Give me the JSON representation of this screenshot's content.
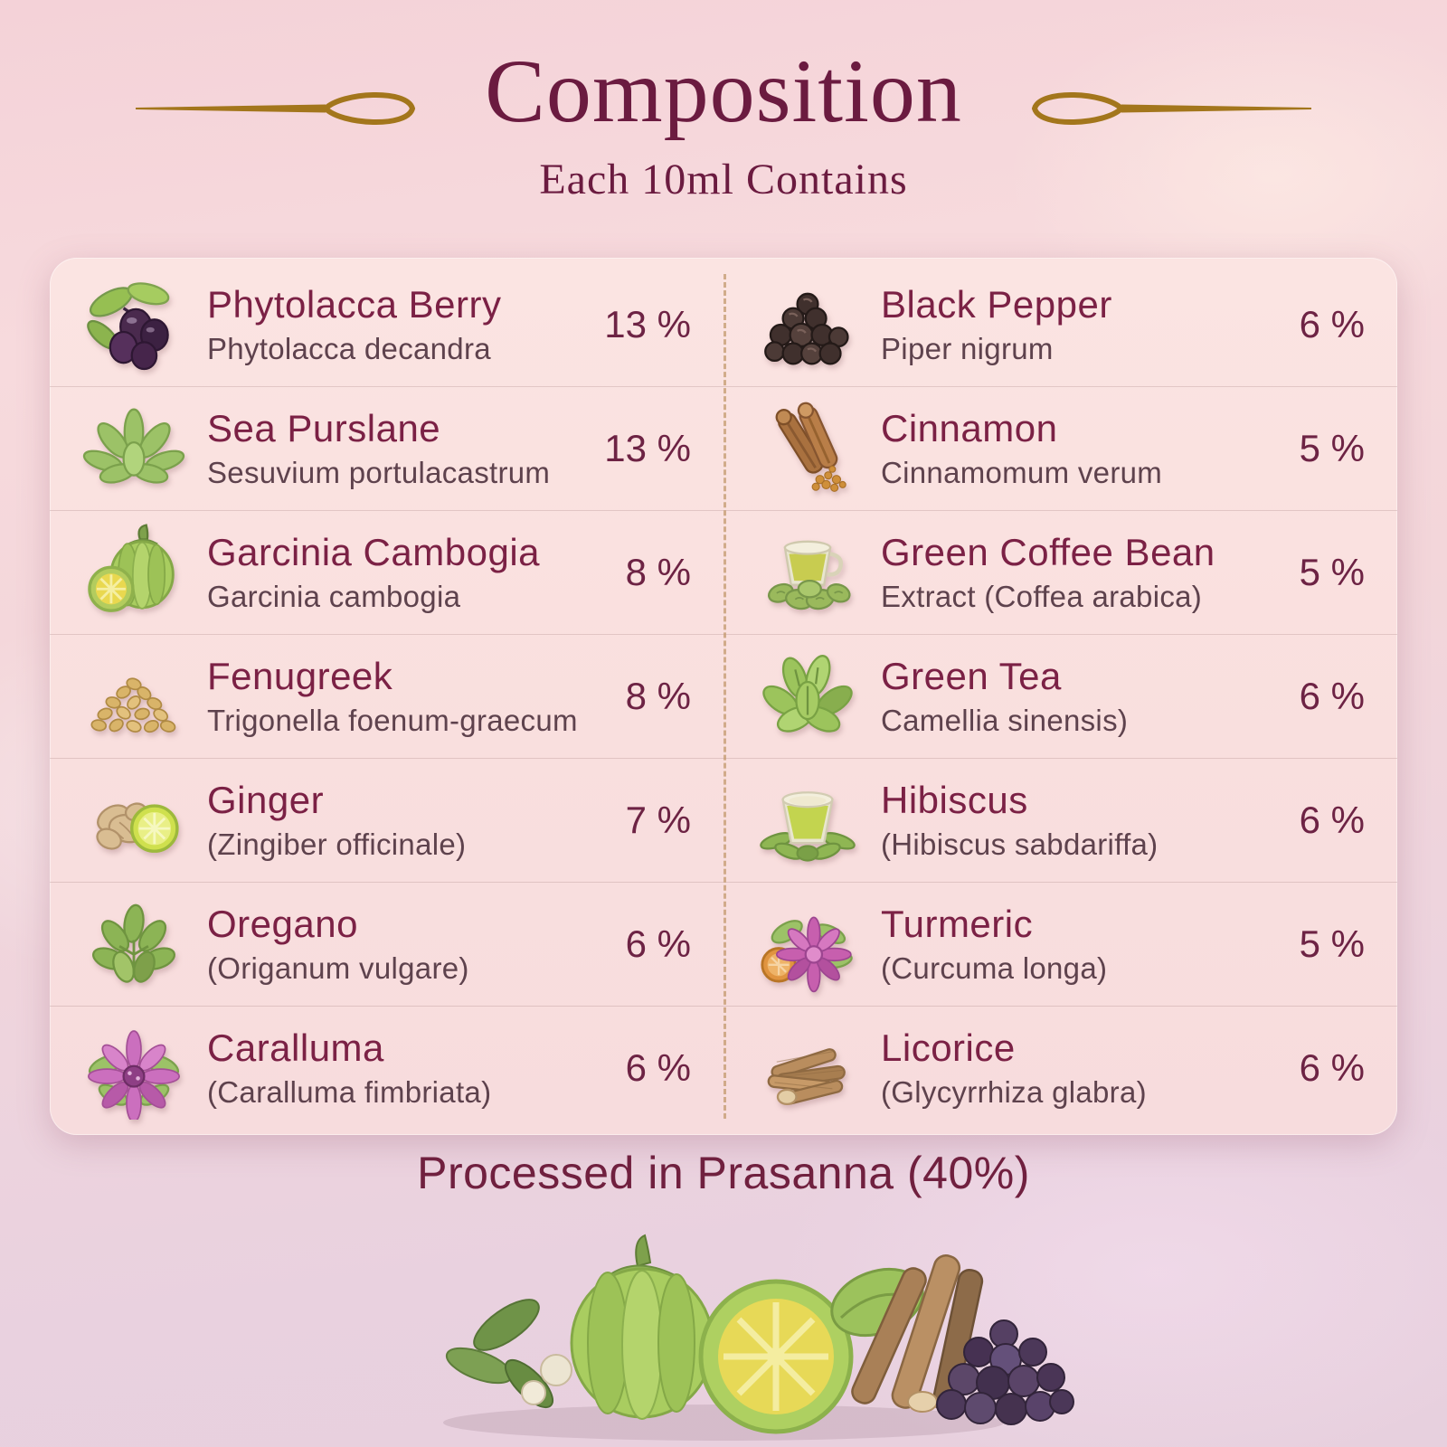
{
  "page": {
    "title": "Composition",
    "subtitle": "Each 10ml Contains",
    "footer": "Processed in Prasanna (40%)"
  },
  "colors": {
    "title_maroon": "#6b1b40",
    "name_maroon": "#7b2145",
    "botanical_gray": "#5e424d",
    "percent_maroon": "#6d2344",
    "ornament_gold": "#a3761c",
    "panel_pink": "#f9e0df",
    "background_pink": "#f1d4da",
    "divider_tan": "#c49a6e"
  },
  "ingredients": {
    "left": [
      {
        "name": "Phytolacca Berry",
        "botanical": "Phytolacca decandra",
        "percent": "13 %",
        "icon": "phytolacca-berry-icon"
      },
      {
        "name": "Sea Purslane",
        "botanical": "Sesuvium portulacastrum",
        "percent": "13 %",
        "icon": "sea-purslane-icon"
      },
      {
        "name": "Garcinia Cambogia",
        "botanical": "Garcinia cambogia",
        "percent": "8 %",
        "icon": "garcinia-icon"
      },
      {
        "name": "Fenugreek",
        "botanical": "Trigonella foenum-graecum",
        "percent": "8 %",
        "icon": "fenugreek-icon"
      },
      {
        "name": "Ginger",
        "botanical": "(Zingiber officinale)",
        "percent": "7 %",
        "icon": "ginger-icon"
      },
      {
        "name": "Oregano",
        "botanical": "(Origanum vulgare)",
        "percent": "6 %",
        "icon": "oregano-icon"
      },
      {
        "name": "Caralluma",
        "botanical": "(Caralluma fimbriata)",
        "percent": "6 %",
        "icon": "caralluma-icon"
      }
    ],
    "right": [
      {
        "name": "Black Pepper",
        "botanical": "Piper nigrum",
        "percent": "6 %",
        "icon": "black-pepper-icon"
      },
      {
        "name": "Cinnamon",
        "botanical": "Cinnamomum verum",
        "percent": "5 %",
        "icon": "cinnamon-icon"
      },
      {
        "name": "Green Coffee Bean",
        "botanical": "Extract (Coffea arabica)",
        "percent": "5 %",
        "icon": "green-coffee-icon"
      },
      {
        "name": "Green Tea",
        "botanical": "Camellia sinensis)",
        "percent": "6 %",
        "icon": "green-tea-icon"
      },
      {
        "name": "Hibiscus",
        "botanical": "(Hibiscus sabdariffa)",
        "percent": "6 %",
        "icon": "hibiscus-icon"
      },
      {
        "name": "Turmeric",
        "botanical": "(Curcuma longa)",
        "percent": "5 %",
        "icon": "turmeric-icon"
      },
      {
        "name": "Licorice",
        "botanical": "(Glycyrrhiza glabra)",
        "percent": "6 %",
        "icon": "licorice-icon"
      }
    ]
  },
  "bottom_illustration": [
    "green-leaves",
    "white-seeds",
    "garcinia-fruit",
    "cut-lime-half",
    "licorice-sticks",
    "black-berry-pile"
  ]
}
